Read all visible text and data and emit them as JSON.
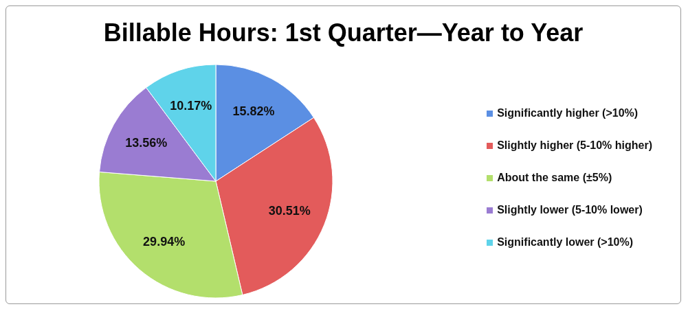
{
  "chart_data": {
    "type": "pie",
    "title": "Billable Hours: 1st Quarter—Year to Year",
    "categories": [
      "Significantly higher (>10%)",
      "Slightly higher (5-10% higher)",
      "About the same (±5%)",
      "Slightly lower (5-10% lower)",
      "Significantly lower (>10%)"
    ],
    "values": [
      15.82,
      30.51,
      29.94,
      13.56,
      10.17
    ],
    "value_labels": [
      "15.82%",
      "30.51%",
      "29.94%",
      "13.56%",
      "10.17%"
    ],
    "colors": [
      "#5b8fe3",
      "#e35b5b",
      "#b3df6c",
      "#9a7cd2",
      "#5fd3ea"
    ],
    "legend": "right"
  }
}
